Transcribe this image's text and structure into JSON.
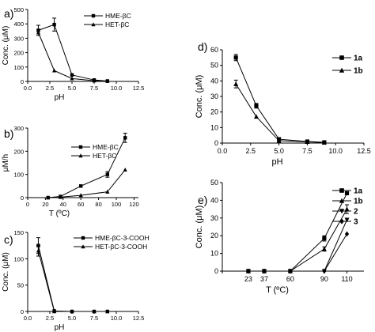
{
  "chart_data": [
    {
      "id": "a",
      "type": "line",
      "panel_label": "a)",
      "xlabel": "pH",
      "ylabel": "Conc. (μM)",
      "xlim": [
        0,
        12.5
      ],
      "ylim": [
        0,
        500
      ],
      "xticks": [
        0.0,
        2.5,
        5.0,
        7.5,
        10.0,
        12.5
      ],
      "xtick_labels": [
        "0.0",
        "2.5",
        "5.0",
        "7.5",
        "10.0",
        "12.5"
      ],
      "yticks": [
        0,
        100,
        200,
        300,
        400,
        500
      ],
      "ytick_labels": [
        "0",
        "100",
        "200",
        "300",
        "400",
        "500"
      ],
      "legend_position": "top-right",
      "series": [
        {
          "name": "HME-βC",
          "marker": "square",
          "x": [
            1.2,
            3.0,
            5.0,
            7.5,
            9.0
          ],
          "y": [
            355,
            395,
            45,
            10,
            3
          ],
          "err": [
            35,
            45,
            0,
            0,
            0
          ]
        },
        {
          "name": "HET-βC",
          "marker": "triangle",
          "x": [
            1.2,
            3.0,
            5.0,
            7.5,
            9.0
          ],
          "y": [
            340,
            75,
            20,
            5,
            2
          ],
          "err": [
            0,
            0,
            0,
            0,
            0
          ]
        }
      ]
    },
    {
      "id": "b",
      "type": "line",
      "panel_label": "b)",
      "xlabel": "T (ºC)",
      "ylabel": "μM/h",
      "xlim": [
        0,
        125
      ],
      "ylim": [
        0,
        300
      ],
      "xticks": [
        0,
        20,
        40,
        60,
        80,
        100,
        120
      ],
      "xtick_labels": [
        "0",
        "20",
        "40",
        "60",
        "80",
        "100",
        "120"
      ],
      "yticks": [
        0,
        100,
        200,
        300
      ],
      "ytick_labels": [
        "0",
        "100",
        "200",
        "300"
      ],
      "legend_position": "top-left",
      "series": [
        {
          "name": "HME-βC",
          "marker": "square",
          "x": [
            23,
            37,
            60,
            90,
            110
          ],
          "y": [
            0,
            5,
            50,
            100,
            258
          ],
          "err": [
            0,
            0,
            0,
            12,
            20
          ]
        },
        {
          "name": "HET-βC",
          "marker": "triangle",
          "x": [
            23,
            37,
            60,
            90,
            110
          ],
          "y": [
            0,
            2,
            10,
            25,
            120
          ],
          "err": [
            0,
            0,
            0,
            0,
            0
          ]
        }
      ]
    },
    {
      "id": "c",
      "type": "line",
      "panel_label": "c)",
      "xlabel": "pH",
      "ylabel": "Conc. (μM)",
      "xlim": [
        0,
        12.5
      ],
      "ylim": [
        0,
        150
      ],
      "xticks": [
        0.0,
        2.5,
        5.0,
        7.5,
        10.0,
        12.5
      ],
      "xtick_labels": [
        "0.0",
        "2.5",
        "5.0",
        "7.5",
        "10.0",
        "12.5"
      ],
      "yticks": [
        0,
        50,
        100,
        150
      ],
      "ytick_labels": [
        "0",
        "50",
        "100",
        "150"
      ],
      "legend_position": "top-right",
      "series": [
        {
          "name": "HME-βC-3-COOH",
          "marker": "square",
          "x": [
            1.2,
            3.0,
            5.0,
            7.5,
            9.0
          ],
          "y": [
            125,
            1,
            0,
            0,
            0
          ],
          "err": [
            15,
            0,
            0,
            0,
            0
          ]
        },
        {
          "name": "HET-βC-3-COOH",
          "marker": "triangle",
          "x": [
            1.2,
            3.0,
            5.0,
            7.5,
            9.0
          ],
          "y": [
            115,
            0,
            0,
            0,
            0
          ],
          "err": [
            10,
            0,
            0,
            0,
            0
          ]
        }
      ]
    },
    {
      "id": "d",
      "type": "line",
      "panel_label": "d)",
      "xlabel": "pH",
      "ylabel": "Conc. (μM)",
      "xlim": [
        0,
        12.5
      ],
      "ylim": [
        0,
        60
      ],
      "xticks": [
        0.0,
        2.5,
        5.0,
        7.5,
        10.0,
        12.5
      ],
      "xtick_labels": [
        "0.0",
        "2.5",
        "5.0",
        "7.5",
        "10.0",
        "12.5"
      ],
      "yticks": [
        0,
        10,
        20,
        30,
        40,
        50,
        60
      ],
      "ytick_labels": [
        "0",
        "10",
        "20",
        "30",
        "40",
        "50",
        "60"
      ],
      "legend_position": "right",
      "series": [
        {
          "name": "1a",
          "marker": "square",
          "x": [
            1.2,
            3.0,
            5.0,
            7.5,
            9.0
          ],
          "y": [
            55,
            24,
            2.5,
            1,
            0.5
          ],
          "err": [
            2,
            1.5,
            0,
            0,
            0
          ]
        },
        {
          "name": "1b",
          "marker": "triangle",
          "x": [
            1.2,
            3.0,
            5.0,
            7.5,
            9.0
          ],
          "y": [
            38,
            17,
            1.5,
            0.8,
            0.3
          ],
          "err": [
            2.5,
            0,
            0,
            0,
            0
          ]
        }
      ]
    },
    {
      "id": "e",
      "type": "line",
      "panel_label": "e)",
      "xlabel": "T (ºC)",
      "ylabel": "Conc. (μM)",
      "xlim": [
        0,
        125
      ],
      "ylim": [
        0,
        50
      ],
      "xticks": [
        0,
        23,
        37,
        60,
        90,
        110
      ],
      "xtick_labels": [
        "",
        "23",
        "37",
        "60",
        "90",
        "110"
      ],
      "yticks": [
        0,
        10,
        20,
        30,
        40,
        50
      ],
      "ytick_labels": [
        "0",
        "10",
        "20",
        "30",
        "40",
        "50"
      ],
      "legend_position": "right",
      "series": [
        {
          "name": "1a",
          "marker": "square",
          "x": [
            23,
            37,
            60,
            90,
            110
          ],
          "y": [
            0,
            0,
            0,
            18.5,
            44
          ],
          "err": [
            0,
            0,
            0,
            1.5,
            0
          ]
        },
        {
          "name": "1b",
          "marker": "triangle",
          "x": [
            23,
            37,
            60,
            90,
            110
          ],
          "y": [
            0,
            0,
            0,
            12.5,
            35
          ],
          "err": [
            0,
            0,
            0,
            1.2,
            2.5
          ]
        },
        {
          "name": "2",
          "marker": "triangle-down",
          "x": [
            23,
            37,
            60,
            90,
            110
          ],
          "y": [
            0,
            0,
            0,
            0,
            29
          ],
          "err": [
            0,
            0,
            0,
            0,
            0
          ]
        },
        {
          "name": "3",
          "marker": "diamond",
          "x": [
            23,
            37,
            60,
            90,
            110
          ],
          "y": [
            0,
            0,
            0,
            0,
            21
          ],
          "err": [
            0,
            0,
            0,
            0,
            0
          ]
        }
      ]
    }
  ]
}
